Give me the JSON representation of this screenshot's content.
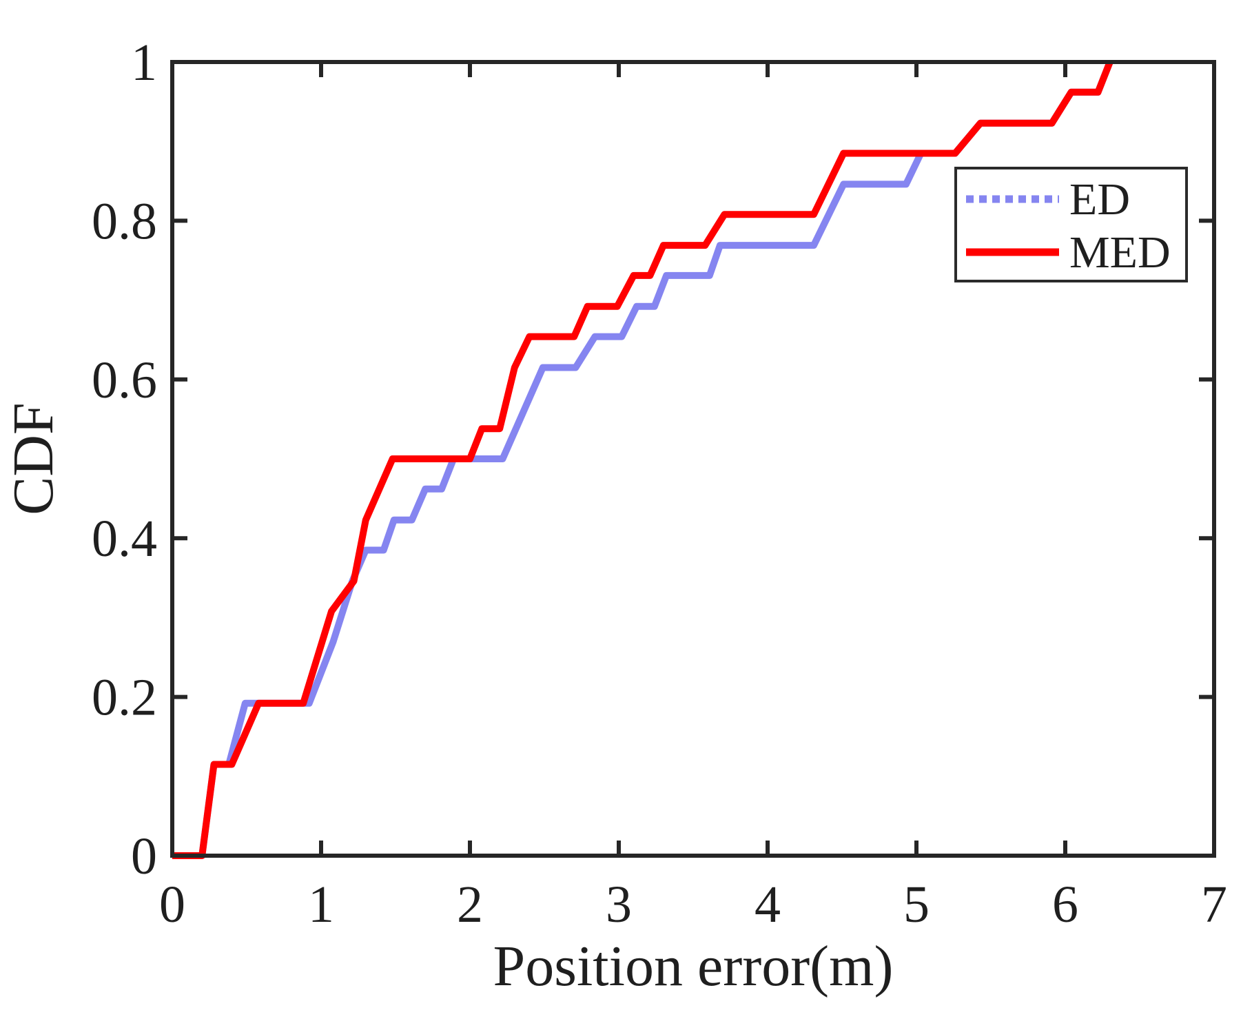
{
  "figure": {
    "xlabel": "Position error(m)",
    "ylabel": "CDF",
    "x_tick_labels": [
      "0",
      "1",
      "2",
      "3",
      "4",
      "5",
      "6",
      "7"
    ],
    "x_tick_values": [
      0,
      1,
      2,
      3,
      4,
      5,
      6,
      7
    ],
    "y_tick_labels": [
      "0",
      "0.2",
      "0.4",
      "0.6",
      "0.8",
      "1"
    ],
    "y_tick_values": [
      0,
      0.2,
      0.4,
      0.6,
      0.8,
      1
    ],
    "axis_color": "#262626",
    "text_color": "#1f1f1f",
    "background": "#ffffff"
  },
  "legend": {
    "items": [
      {
        "label": "ED",
        "color": "#8585f0",
        "style": "dotted"
      },
      {
        "label": "MED",
        "color": "#ff0000",
        "style": "solid"
      }
    ]
  },
  "chart_data": {
    "type": "line",
    "title": "",
    "xlabel": "Position error(m)",
    "ylabel": "CDF",
    "xlim": [
      0,
      7
    ],
    "ylim": [
      0,
      1
    ],
    "grid": false,
    "legend_position": "upper-right-inside",
    "note": "Empirical CDF curves of 26 samples; steps at multiples of 1/26. ED coincides with MED above CDF 0.885 (hidden under red).",
    "series": [
      {
        "name": "ED",
        "color": "#8585f0",
        "line_style_in_plot": "solid",
        "legend_sample_style": "dotted",
        "width": 10,
        "x": [
          0,
          0.2,
          0.28,
          0.38,
          0.49,
          0.92,
          1.08,
          1.21,
          1.3,
          1.42,
          1.49,
          1.61,
          1.7,
          1.81,
          1.89,
          2.22,
          2.49,
          2.71,
          2.84,
          3.02,
          3.12,
          3.24,
          3.32,
          3.61,
          3.68,
          4.31,
          4.51,
          4.93,
          5.03,
          5.26,
          5.43,
          5.91,
          6.04,
          6.22,
          6.3
        ],
        "y": [
          0,
          0,
          0.115,
          0.115,
          0.192,
          0.192,
          0.269,
          0.346,
          0.385,
          0.385,
          0.423,
          0.423,
          0.462,
          0.462,
          0.5,
          0.5,
          0.615,
          0.615,
          0.654,
          0.654,
          0.692,
          0.692,
          0.731,
          0.731,
          0.769,
          0.769,
          0.846,
          0.846,
          0.885,
          0.885,
          0.923,
          0.923,
          0.962,
          0.962,
          1.0
        ]
      },
      {
        "name": "MED",
        "color": "#ff0000",
        "line_style_in_plot": "solid",
        "legend_sample_style": "solid",
        "width": 10,
        "x": [
          0,
          0.2,
          0.28,
          0.4,
          0.58,
          0.88,
          1.07,
          1.22,
          1.3,
          1.48,
          2.0,
          2.08,
          2.2,
          2.3,
          2.4,
          2.7,
          2.79,
          2.99,
          3.1,
          3.21,
          3.3,
          3.58,
          3.71,
          4.31,
          4.51,
          5.26,
          5.43,
          5.91,
          6.04,
          6.22,
          6.3
        ],
        "y": [
          0,
          0,
          0.115,
          0.115,
          0.192,
          0.192,
          0.308,
          0.346,
          0.423,
          0.5,
          0.5,
          0.538,
          0.538,
          0.615,
          0.654,
          0.654,
          0.692,
          0.692,
          0.731,
          0.731,
          0.769,
          0.769,
          0.808,
          0.808,
          0.885,
          0.885,
          0.923,
          0.923,
          0.962,
          0.962,
          1.0
        ]
      }
    ]
  }
}
